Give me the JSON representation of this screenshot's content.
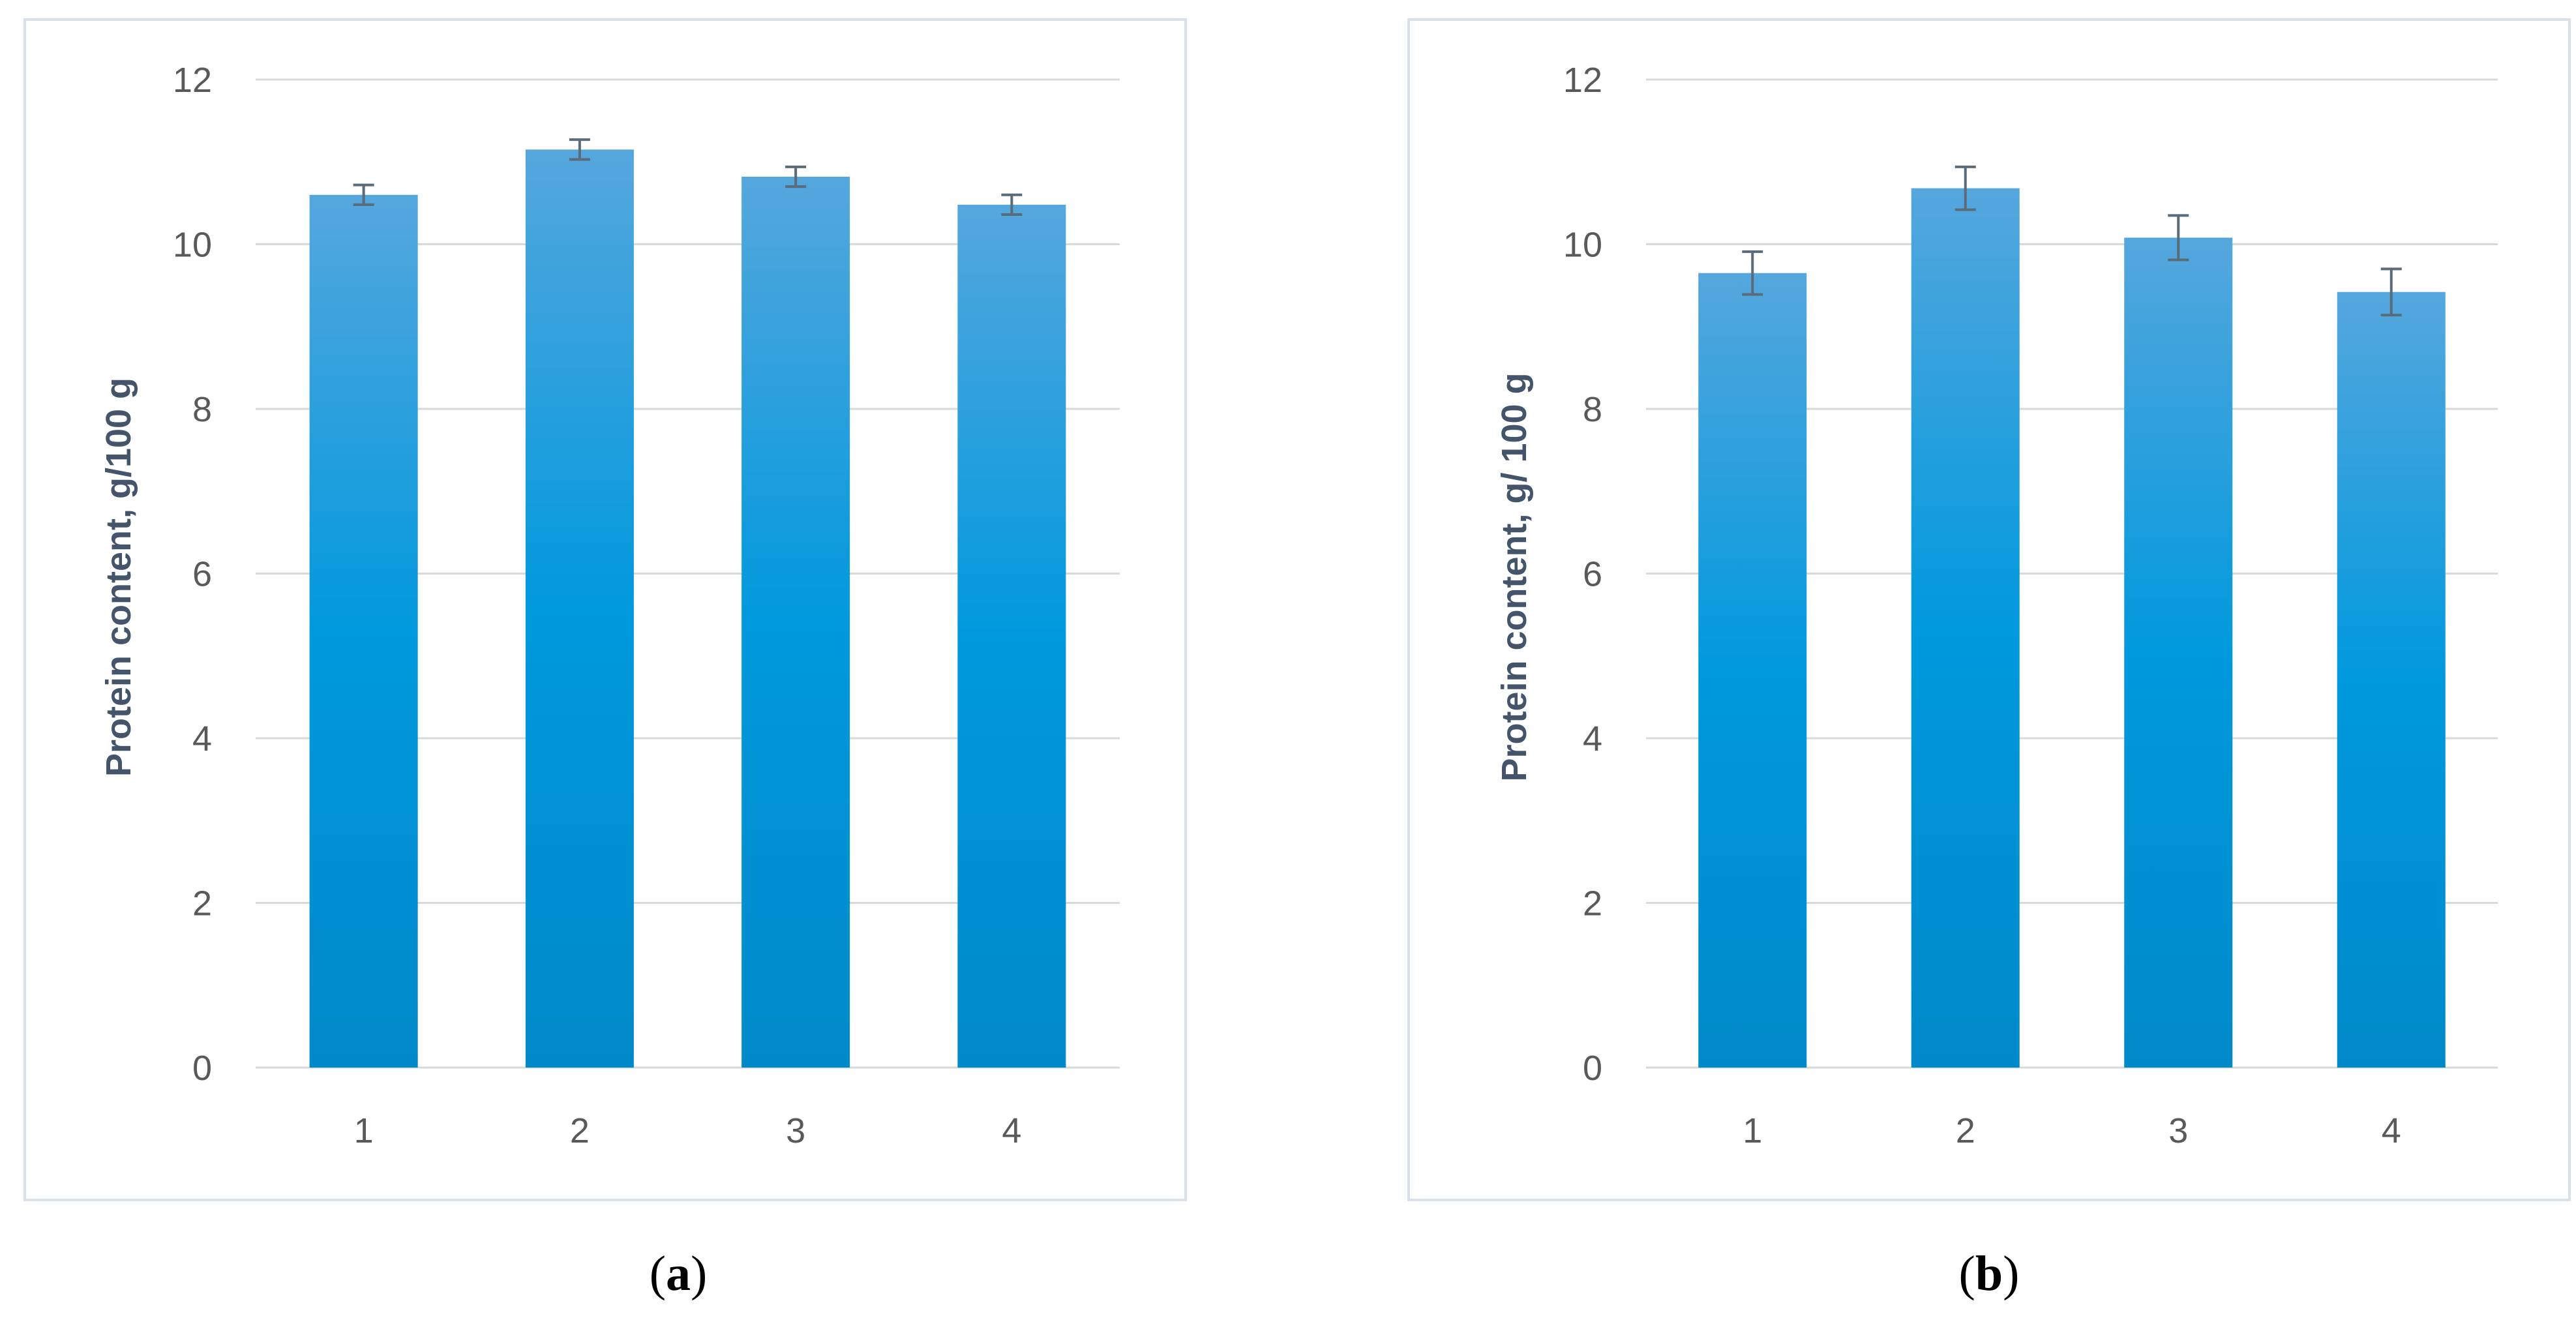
{
  "chart_data": [
    {
      "type": "bar",
      "panel": "a",
      "caption_pre": "(",
      "caption_letter": "a",
      "caption_post": ")",
      "categories": [
        "1",
        "2",
        "3",
        "4"
      ],
      "values": [
        10.6,
        11.15,
        10.82,
        10.48
      ],
      "errors": [
        0.12,
        0.12,
        0.12,
        0.12
      ],
      "ylabel": "Protein content, g/100 g",
      "xlabel": "",
      "ylim": [
        0,
        12
      ],
      "yticks": [
        "0",
        "2",
        "4",
        "6",
        "8",
        "10",
        "12"
      ],
      "grid": true,
      "bar_color_top": "#55a7dd",
      "bar_color_mid": "#0099dd",
      "bar_color_bottom": "#0089c9"
    },
    {
      "type": "bar",
      "panel": "b",
      "caption_pre": "(",
      "caption_letter": "b",
      "caption_post": ")",
      "categories": [
        "1",
        "2",
        "3",
        "4"
      ],
      "values": [
        9.65,
        10.68,
        10.08,
        9.42
      ],
      "errors": [
        0.26,
        0.26,
        0.27,
        0.28
      ],
      "ylabel": "Protein content, g/ 100 g",
      "xlabel": "",
      "ylim": [
        0,
        12
      ],
      "yticks": [
        "0",
        "2",
        "4",
        "6",
        "8",
        "10",
        "12"
      ],
      "grid": true,
      "bar_color_top": "#55a7dd",
      "bar_color_mid": "#0099dd",
      "bar_color_bottom": "#0089c9"
    }
  ]
}
